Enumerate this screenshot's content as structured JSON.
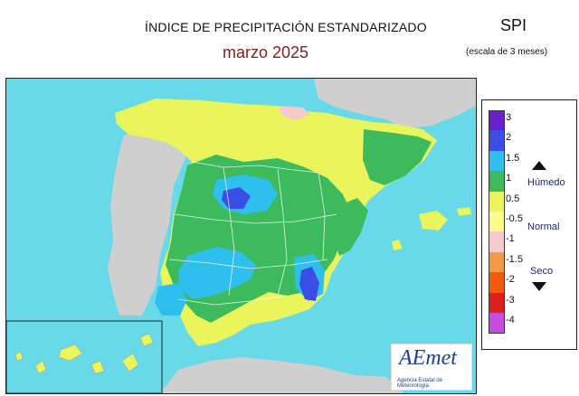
{
  "header": {
    "title": "ÍNDICE DE PRECIPITACIÓN ESTANDARIZADO",
    "date": "marzo  2025",
    "index": "SPI",
    "scale": "(escala de 3 meses)"
  },
  "legend": {
    "ticks": [
      "3",
      "2",
      "1.5",
      "1",
      "0.5",
      "-0.5",
      "-1",
      "-1.5",
      "-2",
      "-3",
      "-4"
    ],
    "colors": [
      "#6a1fd0",
      "#3a4ee6",
      "#2fbfee",
      "#3cba5c",
      "#e9f55a",
      "#fbfb8a",
      "#f6c9cc",
      "#f39a45",
      "#f55a0c",
      "#e01e1e",
      "#c64de0"
    ],
    "humid_label": "Húmedo",
    "normal_label": "Normal",
    "dry_label": "Seco"
  },
  "logo": {
    "name": "AEmet",
    "subtitle": "Agencia Estatal de Meteorología"
  },
  "map_colors": {
    "sea": "#67d9e8",
    "land_other": "#cfcfcf",
    "normal": "#e9f55a",
    "humid": "#3cba5c",
    "very_humid": "#2fbfee",
    "extreme": "#3a4ee6",
    "dry": "#f6c9cc"
  }
}
